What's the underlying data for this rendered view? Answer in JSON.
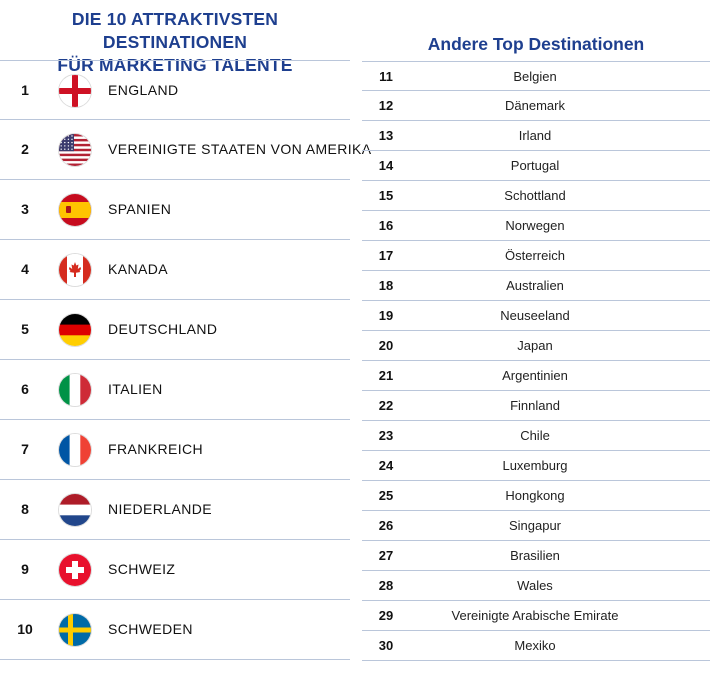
{
  "left": {
    "title_line1": "DIE 10 ATTRAKTIVSTEN DESTINATIONEN",
    "title_line2": "FÜR MARKETING TALENTE",
    "rows": [
      {
        "rank": "1",
        "name": "ENGLAND",
        "flag_icon": "england-flag-icon"
      },
      {
        "rank": "2",
        "name": "VEREINIGTE STAATEN VON AMERIKA",
        "flag_icon": "usa-flag-icon"
      },
      {
        "rank": "3",
        "name": "SPANIEN",
        "flag_icon": "spain-flag-icon"
      },
      {
        "rank": "4",
        "name": "KANADA",
        "flag_icon": "canada-flag-icon"
      },
      {
        "rank": "5",
        "name": "DEUTSCHLAND",
        "flag_icon": "germany-flag-icon"
      },
      {
        "rank": "6",
        "name": "ITALIEN",
        "flag_icon": "italy-flag-icon"
      },
      {
        "rank": "7",
        "name": "FRANKREICH",
        "flag_icon": "france-flag-icon"
      },
      {
        "rank": "8",
        "name": "NIEDERLANDE",
        "flag_icon": "netherlands-flag-icon"
      },
      {
        "rank": "9",
        "name": "SCHWEIZ",
        "flag_icon": "switzerland-flag-icon"
      },
      {
        "rank": "10",
        "name": "SCHWEDEN",
        "flag_icon": "sweden-flag-icon"
      }
    ]
  },
  "right": {
    "title": "Andere Top Destinationen",
    "rows": [
      {
        "rank": "11",
        "name": "Belgien"
      },
      {
        "rank": "12",
        "name": "Dänemark"
      },
      {
        "rank": "13",
        "name": "Irland"
      },
      {
        "rank": "14",
        "name": "Portugal"
      },
      {
        "rank": "15",
        "name": "Schottland"
      },
      {
        "rank": "16",
        "name": "Norwegen"
      },
      {
        "rank": "17",
        "name": "Österreich"
      },
      {
        "rank": "18",
        "name": "Australien"
      },
      {
        "rank": "19",
        "name": "Neuseeland"
      },
      {
        "rank": "20",
        "name": "Japan"
      },
      {
        "rank": "21",
        "name": "Argentinien"
      },
      {
        "rank": "22",
        "name": "Finnland"
      },
      {
        "rank": "23",
        "name": "Chile"
      },
      {
        "rank": "24",
        "name": "Luxemburg"
      },
      {
        "rank": "25",
        "name": "Hongkong"
      },
      {
        "rank": "26",
        "name": "Singapur"
      },
      {
        "rank": "27",
        "name": "Brasilien"
      },
      {
        "rank": "28",
        "name": "Wales"
      },
      {
        "rank": "29",
        "name": "Vereinigte Arabische Emirate"
      },
      {
        "rank": "30",
        "name": "Mexiko"
      }
    ]
  },
  "colors": {
    "title_blue": "#1e3f8f",
    "divider": "#bac6da"
  }
}
